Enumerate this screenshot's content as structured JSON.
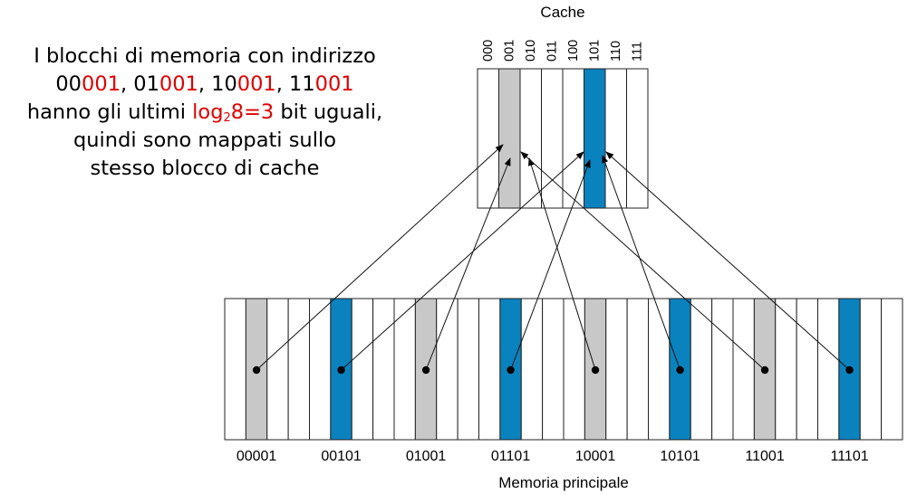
{
  "cache": {
    "title": "Cache",
    "slot_labels": [
      "000",
      "001",
      "010",
      "011",
      "100",
      "101",
      "110",
      "111"
    ],
    "highlighted": [
      {
        "index": 1,
        "color": "gray"
      },
      {
        "index": 5,
        "color": "blue"
      }
    ]
  },
  "memory": {
    "title": "Memoria principale",
    "address_labels": [
      "00001",
      "00101",
      "01001",
      "01101",
      "10001",
      "10101",
      "11001",
      "11101"
    ],
    "block_count": 32,
    "block_indices": [
      1,
      5,
      9,
      13,
      17,
      21,
      25,
      29
    ]
  },
  "colors": {
    "gray": "#c8c8c8",
    "blue": "#0a82be",
    "highlight": "#e00000"
  },
  "note": {
    "line1": "I blocchi di memoria con indirizzo",
    "line2_segments": [
      {
        "text": "00",
        "red": false
      },
      {
        "text": "001",
        "red": true
      },
      {
        "text": ", 01",
        "red": false
      },
      {
        "text": "001",
        "red": true
      },
      {
        "text": ", 10",
        "red": false
      },
      {
        "text": "001",
        "red": true
      },
      {
        "text": ", 11",
        "red": false
      },
      {
        "text": "001",
        "red": true
      }
    ],
    "line3_prefix": "hanno gli ultimi ",
    "line3_log": "log",
    "line3_sub": "2",
    "line3_expr": "8=3",
    "line3_suffix": " bit uguali,",
    "line4": "quindi sono mappati sullo",
    "line5": "stesso blocco di cache"
  }
}
